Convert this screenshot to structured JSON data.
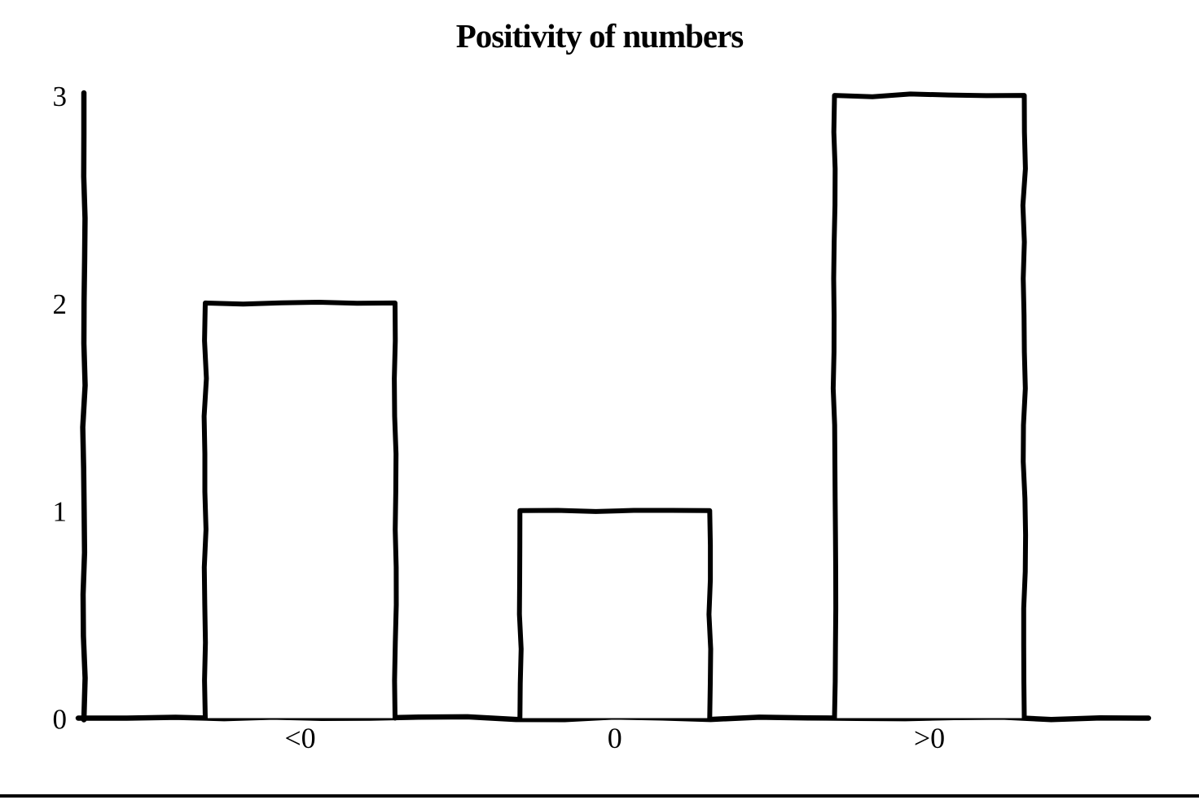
{
  "title": "Positivity of numbers",
  "colors": {
    "foreground": "#000000",
    "background": "#ffffff",
    "bar_fill": "#ffffff"
  },
  "chart_data": {
    "type": "bar",
    "title": "Positivity of numbers",
    "categories": [
      "<0",
      "0",
      ">0"
    ],
    "values": [
      2,
      1,
      3
    ],
    "xlabel": "",
    "ylabel": "",
    "ylim": [
      0,
      3
    ],
    "yticks": [
      0,
      1,
      2,
      3
    ],
    "grid": false,
    "legend_position": "none",
    "bar_style": "outlined-white-hand-drawn"
  }
}
